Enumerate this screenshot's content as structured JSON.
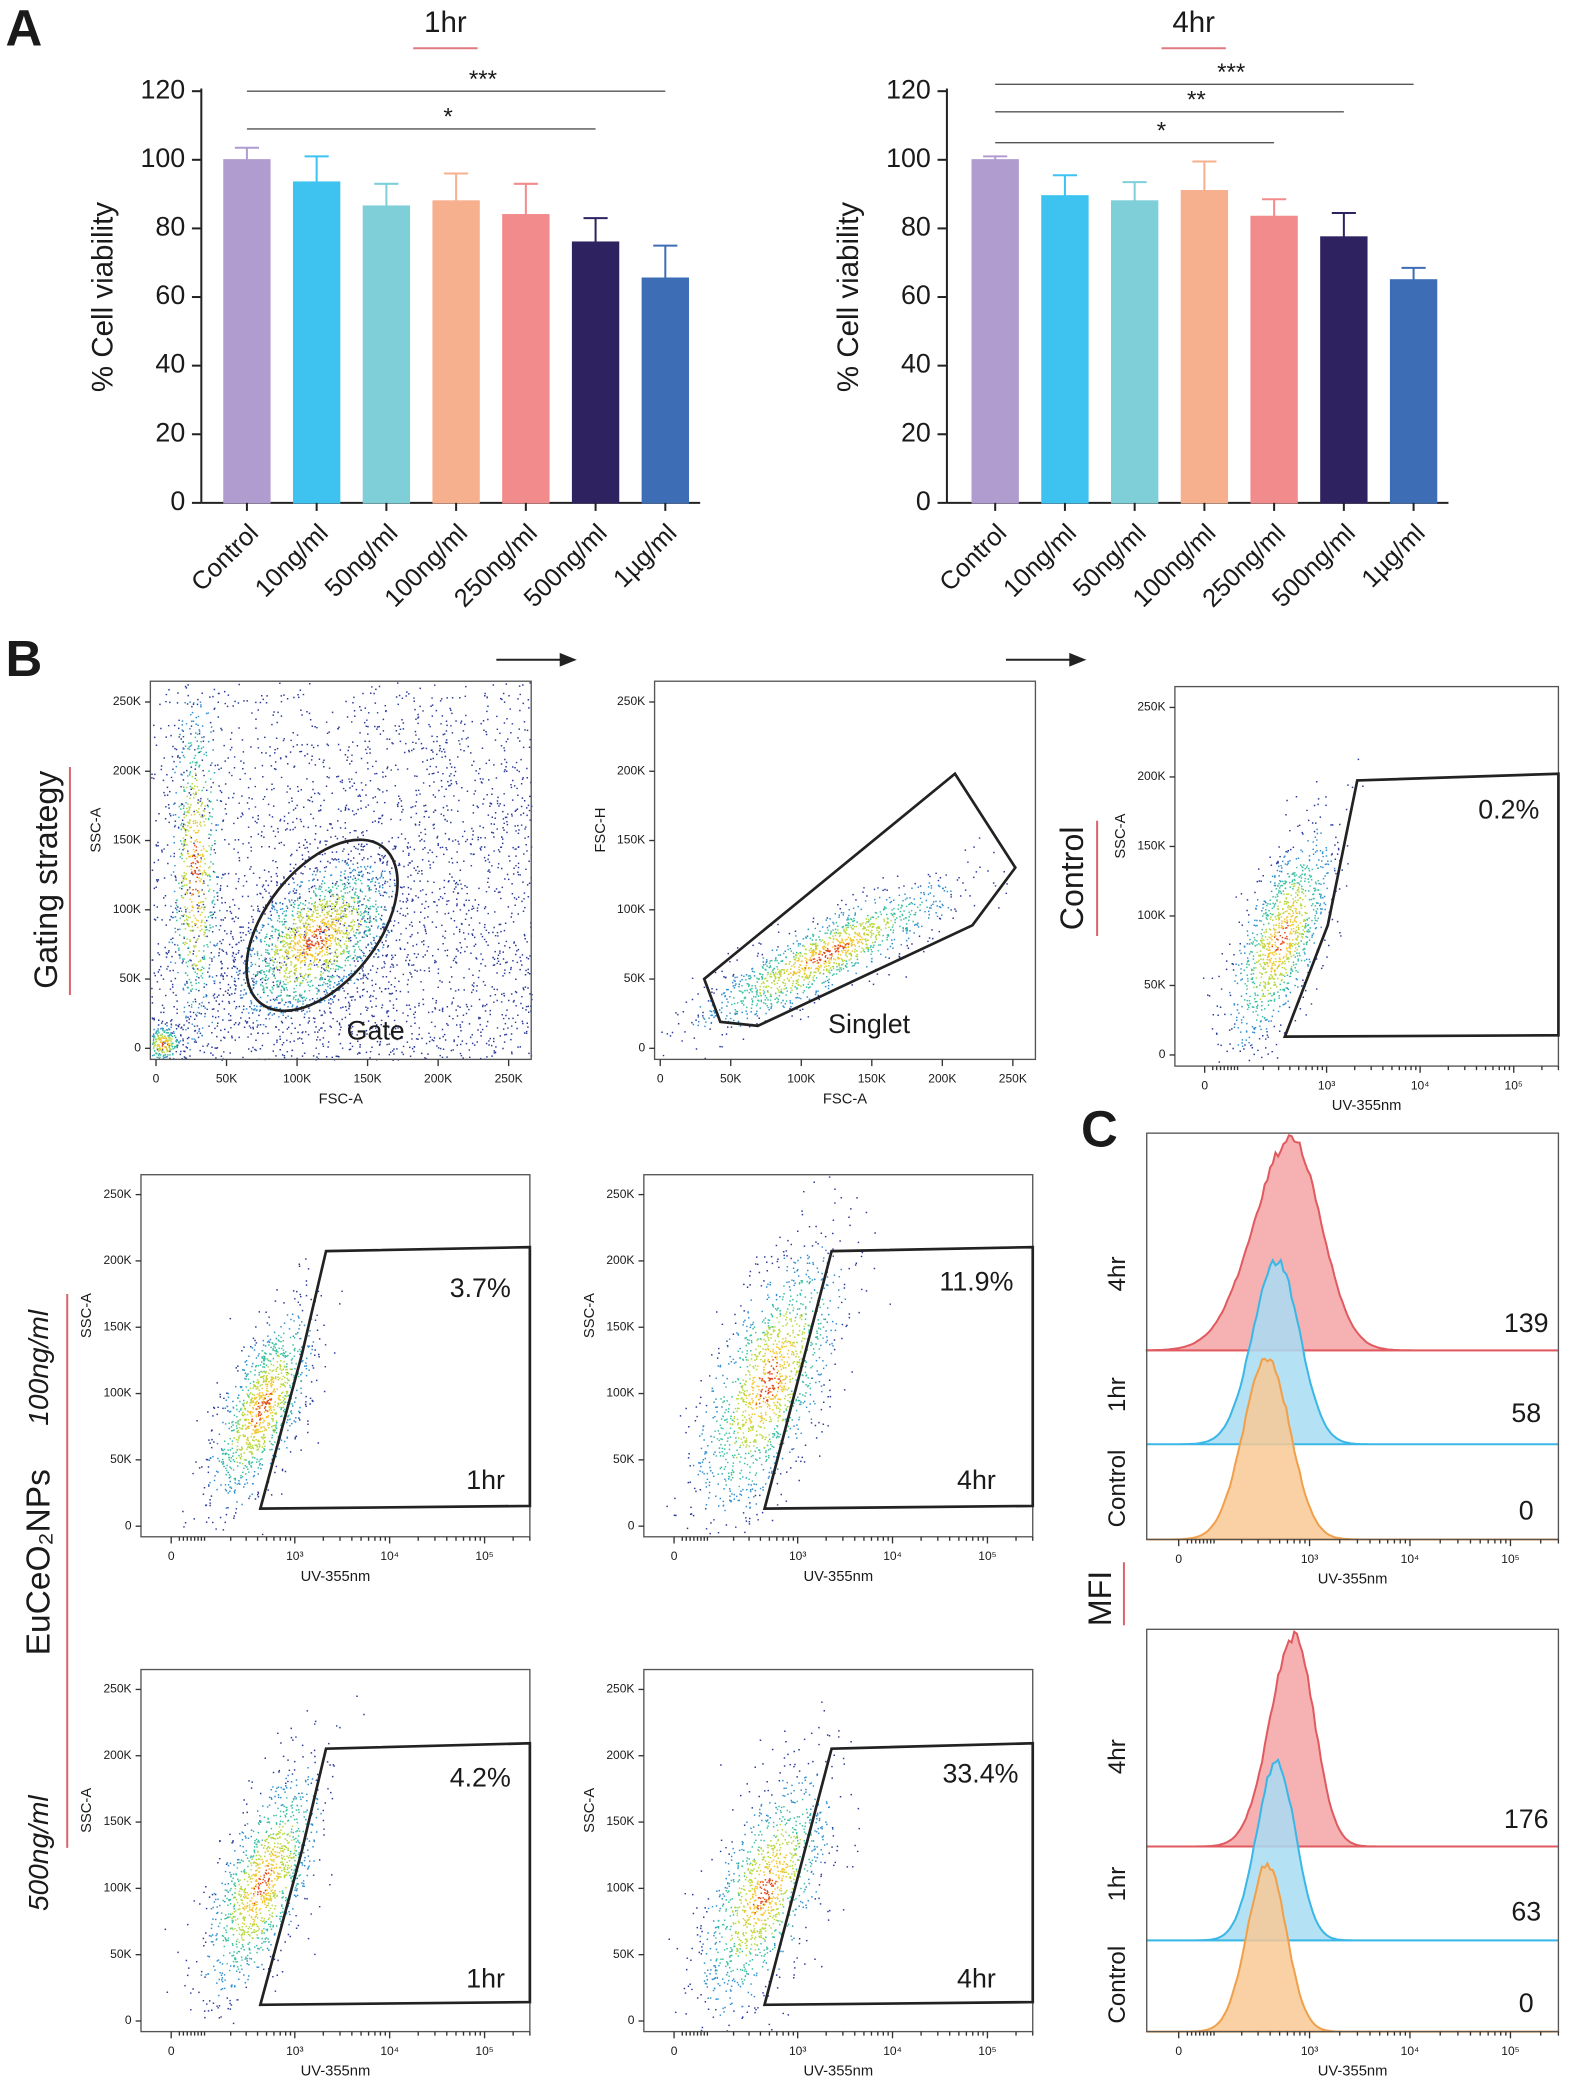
{
  "panel_labels": [
    "A",
    "B",
    "C"
  ],
  "chart_data": [
    {
      "type": "bar",
      "title": "1hr",
      "ylabel": "% Cell viability",
      "categories": [
        "Control",
        "10ng/ml",
        "50ng/ml",
        "100ng/ml",
        "250ng/ml",
        "500ng/ml",
        "1µg/ml"
      ],
      "values": [
        100,
        93.5,
        86.5,
        88,
        84,
        76,
        65.5
      ],
      "errors": [
        3.5,
        7.5,
        6.5,
        8,
        9,
        7,
        9.5
      ],
      "colors": [
        "#b09ccf",
        "#3ec3f0",
        "#7ecfd8",
        "#f6b08e",
        "#f28b8c",
        "#2e2260",
        "#3d6db5"
      ],
      "ylim": [
        0,
        120
      ],
      "yticks": [
        0,
        20,
        40,
        60,
        80,
        100,
        120
      ],
      "annotations": [
        {
          "label": "***",
          "from": 0,
          "to": 6,
          "y": 120
        },
        {
          "label": "*",
          "from": 0,
          "to": 5,
          "y": 109
        }
      ]
    },
    {
      "type": "bar",
      "title": "4hr",
      "ylabel": "% Cell viability",
      "categories": [
        "Control",
        "10ng/ml",
        "50ng/ml",
        "100ng/ml",
        "250ng/ml",
        "500ng/ml",
        "1µg/ml"
      ],
      "values": [
        100,
        89.5,
        88,
        91,
        83.5,
        77.5,
        65
      ],
      "errors": [
        1,
        6,
        5.5,
        8.5,
        5,
        7,
        3.5
      ],
      "colors": [
        "#b09ccf",
        "#3ec3f0",
        "#7ecfd8",
        "#f6b08e",
        "#f28b8c",
        "#2e2260",
        "#3d6db5"
      ],
      "ylim": [
        0,
        120
      ],
      "yticks": [
        0,
        20,
        40,
        60,
        80,
        100,
        120
      ],
      "annotations": [
        {
          "label": "***",
          "from": 0,
          "to": 6,
          "y": 122
        },
        {
          "label": "**",
          "from": 0,
          "to": 5,
          "y": 114
        },
        {
          "label": "*",
          "from": 0,
          "to": 4,
          "y": 105
        }
      ]
    }
  ],
  "panel_b": {
    "row_labels": {
      "gating": "Gating strategy",
      "control": "Control",
      "nps": "EuCeO₂NPs",
      "low": "100ng/ml",
      "high": "500ng/ml"
    },
    "axes": {
      "fsc_a": {
        "label": "FSC-A",
        "scale": "linear",
        "lim": [
          -4000,
          266000
        ],
        "ticks": [
          0,
          {
            "value": 50000,
            "label": "50K"
          },
          {
            "value": 100000,
            "label": "100K"
          },
          {
            "value": 150000,
            "label": "150K"
          },
          {
            "value": 200000,
            "label": "200K"
          },
          {
            "value": 250000,
            "label": "250K"
          }
        ]
      },
      "ssc_a": {
        "label": "SSC-A",
        "scale": "linear",
        "lim": [
          -8000,
          265000
        ],
        "ticks": [
          0,
          {
            "value": 50000,
            "label": "50K"
          },
          {
            "value": 100000,
            "label": "100K"
          },
          {
            "value": 150000,
            "label": "150K"
          },
          {
            "value": 200000,
            "label": "200K"
          },
          {
            "value": 250000,
            "label": "250K"
          }
        ]
      },
      "fsc_h": {
        "label": "FSC-H",
        "scale": "linear",
        "lim": [
          -8000,
          265000
        ],
        "ticks": [
          0,
          {
            "value": 50000,
            "label": "50K"
          },
          {
            "value": 100000,
            "label": "100K"
          },
          {
            "value": 150000,
            "label": "150K"
          },
          {
            "value": 200000,
            "label": "200K"
          },
          {
            "value": 250000,
            "label": "250K"
          }
        ]
      },
      "uv": {
        "label": "UV-355nm",
        "scale": "biex",
        "lim": [
          -80,
          300000
        ],
        "ticks": [
          0,
          {
            "value": 1000,
            "label": "10³"
          },
          {
            "value": 10000,
            "label": "10⁴"
          },
          {
            "value": 100000,
            "label": "10⁵"
          }
        ]
      }
    },
    "plots": [
      {
        "x": "fsc_a",
        "y": "ssc_a",
        "labels": [
          "Gate"
        ]
      },
      {
        "x": "fsc_a",
        "y": "fsc_h",
        "labels": [
          "Singlet"
        ]
      },
      {
        "x": "uv",
        "y": "ssc_a",
        "labels": [
          "0.2%"
        ]
      },
      {
        "x": "uv",
        "y": "ssc_a",
        "labels": [
          "3.7%",
          "1hr"
        ]
      },
      {
        "x": "uv",
        "y": "ssc_a",
        "labels": [
          "11.9%",
          "4hr"
        ]
      },
      {
        "x": "uv",
        "y": "ssc_a",
        "labels": [
          "4.2%",
          "1hr"
        ]
      },
      {
        "x": "uv",
        "y": "ssc_a",
        "labels": [
          "33.4%",
          "4hr"
        ]
      }
    ]
  },
  "panel_c": {
    "label": "MFI",
    "histograms": [
      {
        "rows": [
          "4hr",
          "1hr",
          "Control"
        ],
        "mfi": [
          139,
          58,
          0
        ]
      },
      {
        "rows": [
          "4hr",
          "1hr",
          "Control"
        ],
        "mfi": [
          176,
          63,
          0
        ]
      }
    ]
  }
}
